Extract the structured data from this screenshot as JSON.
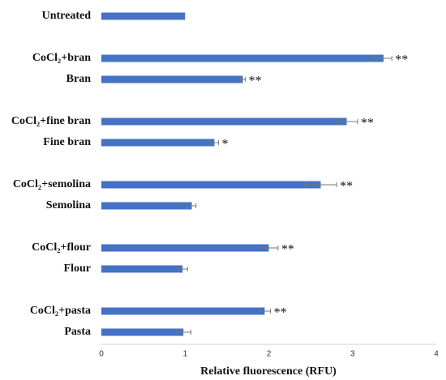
{
  "chart_data": {
    "type": "hbar",
    "x_label": "Relative fluorescence (RFU)",
    "categories": [
      "Untreated",
      null,
      "CoCl₂+bran",
      "Bran",
      null,
      "CoCl₂+fine bran",
      "Fine bran",
      null,
      "CoCl₂+semolina",
      "Semolina",
      null,
      "CoCl₂+flour",
      "Flour",
      null,
      "CoCl₂+pasta",
      "Pasta"
    ],
    "values": [
      1.0,
      null,
      3.37,
      1.69,
      null,
      2.93,
      1.35,
      null,
      2.62,
      1.08,
      null,
      2.0,
      0.97,
      null,
      1.95,
      0.98
    ],
    "errors": [
      null,
      null,
      0.1,
      0.03,
      null,
      0.13,
      0.05,
      null,
      0.19,
      0.05,
      null,
      0.11,
      0.06,
      null,
      0.07,
      0.09
    ],
    "annotations": [
      null,
      null,
      "**",
      "**",
      null,
      "**",
      "*",
      null,
      "**",
      null,
      null,
      "**",
      null,
      null,
      "**",
      null
    ],
    "color": "#4472c4",
    "xlim": [
      0,
      4
    ],
    "xticks": [
      0,
      1,
      2,
      3,
      4
    ],
    "grid": false
  }
}
